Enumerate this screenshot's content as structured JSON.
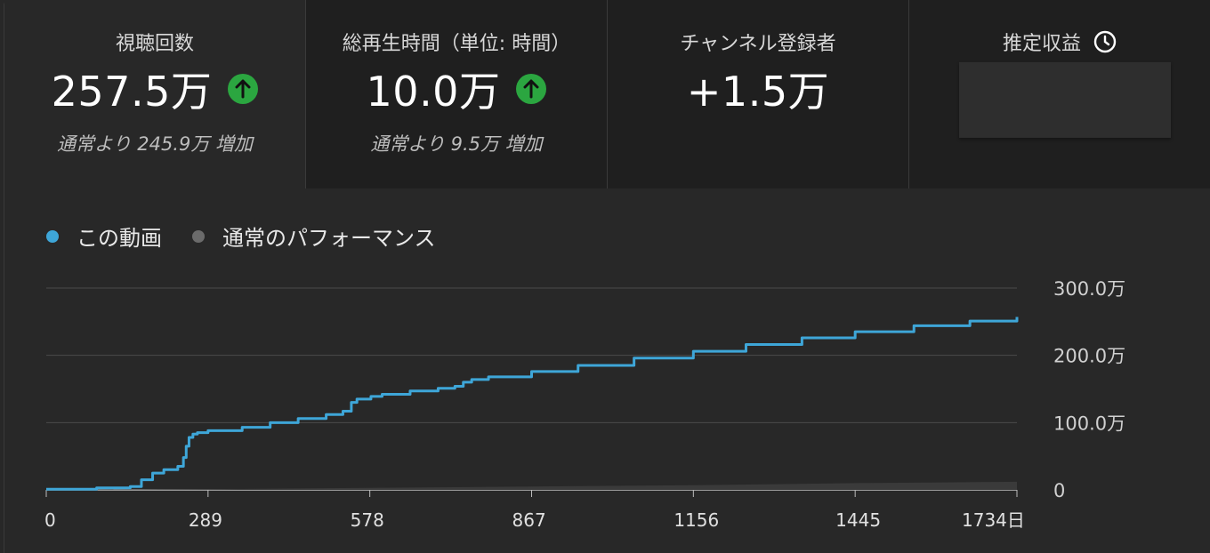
{
  "metrics": [
    {
      "label": "視聴回数",
      "value": "257.5万",
      "trend": "up",
      "comparison": "通常より 245.9万 増加"
    },
    {
      "label": "総再生時間（単位: 時間）",
      "value": "10.0万",
      "trend": "up",
      "comparison": "通常より 9.5万 増加"
    },
    {
      "label": "チャンネル登録者",
      "value": "+1.5万"
    },
    {
      "label": "推定収益",
      "icon": "clock-icon"
    }
  ],
  "legend": [
    {
      "label": "この動画",
      "color": "#3ea6d8"
    },
    {
      "label": "通常のパフォーマンス",
      "color": "#6b6b6b"
    }
  ],
  "colors": {
    "accent_up": "#2ba640",
    "series_this_video": "#3ea6d8",
    "series_typical": "#555555"
  },
  "chart_data": {
    "type": "line",
    "xlabel": "",
    "ylabel": "",
    "x_ticks": [
      "0",
      "289",
      "578",
      "867",
      "1156",
      "1445",
      "1734日"
    ],
    "y_ticks": [
      "300.0万",
      "200.0万",
      "100.0万",
      "0"
    ],
    "xlim": [
      0,
      1734
    ],
    "ylim": [
      0,
      3000000
    ],
    "grid": true,
    "series": [
      {
        "name": "この動画",
        "x": [
          0,
          60,
          90,
          150,
          170,
          190,
          210,
          235,
          245,
          250,
          255,
          262,
          270,
          289,
          350,
          400,
          450,
          500,
          530,
          545,
          555,
          580,
          600,
          650,
          700,
          730,
          745,
          760,
          790,
          867,
          950,
          1050,
          1156,
          1250,
          1350,
          1445,
          1550,
          1650,
          1734
        ],
        "y": [
          10000,
          10000,
          30000,
          50000,
          150000,
          250000,
          300000,
          350000,
          480000,
          650000,
          780000,
          830000,
          850000,
          880000,
          930000,
          1000000,
          1060000,
          1120000,
          1170000,
          1300000,
          1350000,
          1390000,
          1420000,
          1470000,
          1510000,
          1540000,
          1600000,
          1640000,
          1680000,
          1760000,
          1850000,
          1960000,
          2060000,
          2160000,
          2260000,
          2350000,
          2440000,
          2510000,
          2570000
        ]
      },
      {
        "name": "通常のパフォーマンス",
        "x": [
          0,
          289,
          578,
          867,
          1156,
          1445,
          1734
        ],
        "y": [
          0,
          10000,
          30000,
          50000,
          70000,
          100000,
          120000
        ]
      }
    ]
  }
}
